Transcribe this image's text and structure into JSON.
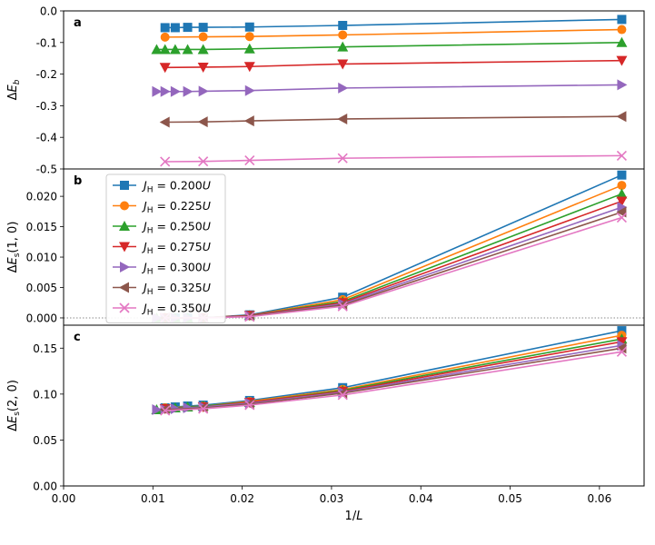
{
  "chart_data": {
    "type": "line",
    "xlabel": "1/L",
    "x_ticks": [
      "0.00",
      "0.01",
      "0.02",
      "0.03",
      "0.04",
      "0.05",
      "0.06"
    ],
    "xlim": [
      0.0,
      0.065
    ],
    "legend": {
      "placement": "upper-left of panel b",
      "entries": [
        {
          "prefix": "J",
          "sub": "H",
          "value": " = 0.200U"
        },
        {
          "prefix": "J",
          "sub": "H",
          "value": " = 0.225U"
        },
        {
          "prefix": "J",
          "sub": "H",
          "value": " = 0.250U"
        },
        {
          "prefix": "J",
          "sub": "H",
          "value": " = 0.275U"
        },
        {
          "prefix": "J",
          "sub": "H",
          "value": " = 0.300U"
        },
        {
          "prefix": "J",
          "sub": "H",
          "value": " = 0.325U"
        },
        {
          "prefix": "J",
          "sub": "H",
          "value": " = 0.350U"
        }
      ]
    },
    "series_style": [
      {
        "name": "J_H = 0.200U",
        "color": "#1f77b4",
        "marker": "square"
      },
      {
        "name": "J_H = 0.225U",
        "color": "#ff7f0e",
        "marker": "circle"
      },
      {
        "name": "J_H = 0.250U",
        "color": "#2ca02c",
        "marker": "triangle-up"
      },
      {
        "name": "J_H = 0.275U",
        "color": "#d62728",
        "marker": "triangle-down"
      },
      {
        "name": "J_H = 0.300U",
        "color": "#9467bd",
        "marker": "triangle-right"
      },
      {
        "name": "J_H = 0.325U",
        "color": "#8c564b",
        "marker": "triangle-left"
      },
      {
        "name": "J_H = 0.350U",
        "color": "#e377c2",
        "marker": "x"
      }
    ],
    "panels": [
      {
        "panel_label": "a",
        "ylabel": "ΔE_b",
        "ylim": [
          -0.5,
          0.0
        ],
        "y_ticks": [
          0.0,
          -0.1,
          -0.2,
          -0.3,
          -0.4,
          -0.5
        ],
        "y_tick_labels": [
          "0.0",
          "-0.1",
          "-0.2",
          "-0.3",
          "-0.4",
          "-0.5"
        ],
        "reference_line": null,
        "series": [
          {
            "x": [
              0.01136,
              0.0125,
              0.01389,
              0.01563,
              0.02083,
              0.03125,
              0.0625
            ],
            "y": [
              -0.053,
              -0.053,
              -0.052,
              -0.052,
              -0.051,
              -0.046,
              -0.027
            ]
          },
          {
            "x": [
              0.01136,
              0.01563,
              0.02083,
              0.03125,
              0.0625
            ],
            "y": [
              -0.083,
              -0.082,
              -0.081,
              -0.076,
              -0.059
            ]
          },
          {
            "x": [
              0.01042,
              0.01136,
              0.0125,
              0.01389,
              0.01563,
              0.02083,
              0.03125,
              0.0625
            ],
            "y": [
              -0.122,
              -0.122,
              -0.122,
              -0.122,
              -0.122,
              -0.12,
              -0.114,
              -0.1
            ]
          },
          {
            "x": [
              0.01136,
              0.01563,
              0.02083,
              0.03125,
              0.0625
            ],
            "y": [
              -0.179,
              -0.178,
              -0.176,
              -0.168,
              -0.157
            ]
          },
          {
            "x": [
              0.01042,
              0.01136,
              0.0125,
              0.01389,
              0.01563,
              0.02083,
              0.03125,
              0.0625
            ],
            "y": [
              -0.255,
              -0.255,
              -0.255,
              -0.255,
              -0.254,
              -0.252,
              -0.244,
              -0.234
            ]
          },
          {
            "x": [
              0.01136,
              0.01563,
              0.02083,
              0.03125,
              0.0625
            ],
            "y": [
              -0.352,
              -0.351,
              -0.348,
              -0.342,
              -0.334
            ]
          },
          {
            "x": [
              0.01136,
              0.01563,
              0.02083,
              0.03125,
              0.0625
            ],
            "y": [
              -0.477,
              -0.476,
              -0.473,
              -0.466,
              -0.458
            ]
          }
        ]
      },
      {
        "panel_label": "b",
        "ylabel": "ΔE_s(1, 0)",
        "ylim": [
          -0.0012,
          0.0245
        ],
        "y_ticks": [
          0.0,
          0.005,
          0.01,
          0.015,
          0.02
        ],
        "y_tick_labels": [
          "0.000",
          "0.005",
          "0.010",
          "0.015",
          "0.020"
        ],
        "reference_line": 0.0,
        "series": [
          {
            "x": [
              0.01136,
              0.0125,
              0.01389,
              0.01563,
              0.02083,
              0.03125,
              0.0625
            ],
            "y": [
              0.0,
              0.0,
              0.0,
              0.0,
              0.0005,
              0.0034,
              0.0235
            ]
          },
          {
            "x": [
              0.01136,
              0.01563,
              0.02083,
              0.03125,
              0.0625
            ],
            "y": [
              0.0,
              0.0,
              0.0004,
              0.003,
              0.0218
            ]
          },
          {
            "x": [
              0.01042,
              0.01136,
              0.0125,
              0.01389,
              0.01563,
              0.02083,
              0.03125,
              0.0625
            ],
            "y": [
              0.0,
              0.0,
              0.0,
              0.0,
              0.0,
              0.0004,
              0.0027,
              0.0204
            ]
          },
          {
            "x": [
              0.01136,
              0.01563,
              0.02083,
              0.03125,
              0.0625
            ],
            "y": [
              0.0,
              0.0,
              0.0004,
              0.0025,
              0.0192
            ]
          },
          {
            "x": [
              0.01042,
              0.01136,
              0.0125,
              0.01389,
              0.01563,
              0.02083,
              0.03125,
              0.0625
            ],
            "y": [
              0.0,
              0.0,
              0.0,
              0.0,
              0.0,
              0.0003,
              0.0023,
              0.0182
            ]
          },
          {
            "x": [
              0.01136,
              0.01563,
              0.02083,
              0.03125,
              0.0625
            ],
            "y": [
              0.0,
              0.0,
              0.0003,
              0.0021,
              0.0174
            ]
          },
          {
            "x": [
              0.01136,
              0.01563,
              0.02083,
              0.03125,
              0.0625
            ],
            "y": [
              0.0,
              0.0,
              0.0002,
              0.0019,
              0.0165
            ]
          }
        ]
      },
      {
        "panel_label": "c",
        "ylabel": "ΔE_s(2, 0)",
        "ylim": [
          0.0,
          0.175
        ],
        "y_ticks": [
          0.0,
          0.05,
          0.1,
          0.15
        ],
        "y_tick_labels": [
          "0.00",
          "0.05",
          "0.10",
          "0.15"
        ],
        "reference_line": null,
        "series": [
          {
            "x": [
              0.01136,
              0.0125,
              0.01389,
              0.01563,
              0.02083,
              0.03125,
              0.0625
            ],
            "y": [
              0.085,
              0.086,
              0.087,
              0.088,
              0.093,
              0.107,
              0.169
            ]
          },
          {
            "x": [
              0.01136,
              0.01563,
              0.02083,
              0.03125,
              0.0625
            ],
            "y": [
              0.085,
              0.087,
              0.092,
              0.105,
              0.164
            ]
          },
          {
            "x": [
              0.01042,
              0.01136,
              0.0125,
              0.01389,
              0.01563,
              0.02083,
              0.03125,
              0.0625
            ],
            "y": [
              0.083,
              0.084,
              0.085,
              0.086,
              0.087,
              0.091,
              0.104,
              0.16
            ]
          },
          {
            "x": [
              0.01136,
              0.01563,
              0.02083,
              0.03125,
              0.0625
            ],
            "y": [
              0.084,
              0.086,
              0.091,
              0.103,
              0.157
            ]
          },
          {
            "x": [
              0.01042,
              0.01136,
              0.0125,
              0.01389,
              0.01563,
              0.02083,
              0.03125,
              0.0625
            ],
            "y": [
              0.083,
              0.083,
              0.084,
              0.085,
              0.086,
              0.09,
              0.102,
              0.153
            ]
          },
          {
            "x": [
              0.01136,
              0.01563,
              0.02083,
              0.03125,
              0.0625
            ],
            "y": [
              0.083,
              0.085,
              0.089,
              0.101,
              0.15
            ]
          },
          {
            "x": [
              0.01136,
              0.01563,
              0.02083,
              0.03125,
              0.0625
            ],
            "y": [
              0.082,
              0.084,
              0.088,
              0.099,
              0.146
            ]
          }
        ]
      }
    ]
  }
}
